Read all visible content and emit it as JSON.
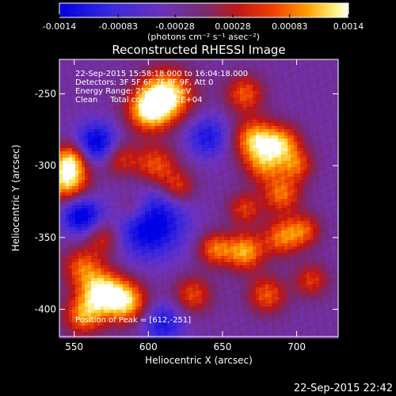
{
  "chart_data": {
    "type": "heatmap",
    "title": "Reconstructed RHESSI Image",
    "xlabel": "Heliocentric X (arcsec)",
    "ylabel": "Heliocentric Y (arcsec)",
    "xlim": [
      540,
      728
    ],
    "ylim": [
      -419,
      -226
    ],
    "x_ticks": [
      550,
      600,
      650,
      700
    ],
    "x_tick_labels": [
      "550",
      "600",
      "650",
      "700"
    ],
    "y_ticks": [
      -250,
      -300,
      -350,
      -400
    ],
    "y_tick_labels": [
      "-250",
      "-300",
      "-350",
      "-400"
    ],
    "colorbar": {
      "min": -0.0014,
      "max": 0.0014,
      "ticks": [
        -0.0014,
        -0.00083,
        -0.00028,
        0.00028,
        0.00083,
        0.0014
      ],
      "tick_labels": [
        "-0.0014",
        "-0.00083",
        "-0.00028",
        "0.00028",
        "0.00083",
        "0.0014"
      ],
      "units": "(photons cm⁻² s⁻¹ asec⁻²)"
    },
    "annotations": [
      "22-Sep-2015 15:58:18.000 to 16:04:18.000",
      "Detectors: 3F 5F 6F 7F 8F 9F, Att 0",
      "Energy Range: 25.0-50.0 keV",
      "Clean     Total counts: 2.32E+04"
    ],
    "peak_label": "Position of Peak = [612,-251]",
    "peak": [
      612,
      -251
    ],
    "grid": false
  },
  "footer": {
    "timestamp": "22-Sep-2015 22:42"
  }
}
